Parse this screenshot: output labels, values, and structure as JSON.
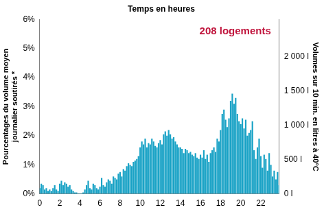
{
  "chart_data": {
    "type": "bar",
    "title": "Temps en heures",
    "annotation": "208 logements",
    "annotation_color": "#c0143c",
    "y_label": [
      "Pourcentages du volume moyen",
      "journalier soutirés *"
    ],
    "y2_label": "Volumes sur 10 min. en litres à 40°C",
    "color": "#1ba3c6",
    "grid": false,
    "legend": false,
    "categories": [
      "0",
      null,
      null,
      null,
      null,
      null,
      null,
      null,
      null,
      null,
      null,
      null,
      "2",
      null,
      null,
      null,
      null,
      null,
      null,
      null,
      null,
      null,
      null,
      null,
      "4",
      null,
      null,
      null,
      null,
      null,
      null,
      null,
      null,
      null,
      null,
      null,
      "6",
      null,
      null,
      null,
      null,
      null,
      null,
      null,
      null,
      null,
      null,
      null,
      "8",
      null,
      null,
      null,
      null,
      null,
      null,
      null,
      null,
      null,
      null,
      null,
      "10",
      null,
      null,
      null,
      null,
      null,
      null,
      null,
      null,
      null,
      null,
      null,
      "12",
      null,
      null,
      null,
      null,
      null,
      null,
      null,
      null,
      null,
      null,
      null,
      "14",
      null,
      null,
      null,
      null,
      null,
      null,
      null,
      null,
      null,
      null,
      null,
      "16",
      null,
      null,
      null,
      null,
      null,
      null,
      null,
      null,
      null,
      null,
      null,
      "18",
      null,
      null,
      null,
      null,
      null,
      null,
      null,
      null,
      null,
      null,
      null,
      "20",
      null,
      null,
      null,
      null,
      null,
      null,
      null,
      null,
      null,
      null,
      null,
      "22",
      null,
      null,
      null,
      null,
      null,
      null,
      null,
      null,
      null,
      null,
      null
    ],
    "values": [
      0.2,
      0.35,
      0.3,
      0.15,
      0.2,
      0.1,
      0.15,
      0.1,
      0.2,
      0.3,
      0.15,
      0.1,
      0.35,
      0.45,
      0.3,
      0.4,
      0.35,
      0.25,
      0.3,
      0.15,
      0.1,
      0.05,
      0.05,
      0.02,
      0.02,
      0.02,
      0.05,
      0.15,
      0.3,
      0.45,
      0.2,
      0.15,
      0.35,
      0.3,
      0.2,
      0.15,
      0.25,
      0.55,
      0.3,
      0.25,
      0.4,
      0.5,
      0.45,
      0.35,
      0.6,
      0.55,
      0.5,
      0.7,
      0.75,
      0.6,
      0.85,
      0.8,
      0.95,
      1.05,
      1.0,
      0.95,
      1.1,
      1.15,
      1.2,
      1.3,
      1.6,
      1.8,
      1.7,
      1.9,
      1.6,
      1.75,
      1.7,
      1.9,
      1.8,
      1.65,
      1.6,
      1.75,
      1.85,
      1.7,
      2.05,
      2.15,
      2.0,
      2.2,
      2.05,
      1.9,
      1.95,
      1.8,
      1.7,
      1.6,
      1.6,
      1.55,
      1.4,
      1.55,
      1.5,
      1.4,
      1.45,
      1.35,
      1.3,
      1.4,
      1.25,
      1.2,
      1.35,
      1.25,
      1.5,
      1.2,
      1.35,
      1.1,
      1.4,
      1.5,
      1.6,
      1.45,
      1.9,
      1.8,
      2.2,
      2.75,
      2.9,
      2.55,
      2.3,
      2.6,
      3.2,
      3.45,
      3.1,
      3.3,
      2.75,
      2.5,
      2.4,
      2.6,
      2.25,
      2.55,
      2.0,
      2.1,
      2.2,
      2.5,
      1.5,
      1.2,
      1.6,
      1.9,
      1.3,
      0.9,
      1.35,
      1.2,
      0.8,
      1.4,
      1.0,
      0.6,
      0.8,
      0.5,
      0.75,
      0.3
    ],
    "ylim": [
      0,
      6
    ],
    "yticks": [
      {
        "value": 0,
        "label": "0%"
      },
      {
        "value": 1,
        "label": "1%"
      },
      {
        "value": 2,
        "label": "2%"
      },
      {
        "value": 3,
        "label": "3%"
      },
      {
        "value": 4,
        "label": "4%"
      },
      {
        "value": 5,
        "label": "5%"
      },
      {
        "value": 6,
        "label": "6%"
      }
    ],
    "y2lim": [
      0,
      2540
    ],
    "y2ticks": [
      {
        "value": 0,
        "label": "0 l"
      },
      {
        "value": 500,
        "label": "500 l"
      },
      {
        "value": 1000,
        "label": "1 000 l"
      },
      {
        "value": 1500,
        "label": "1 500 l"
      },
      {
        "value": 2000,
        "label": "2 000 l"
      }
    ]
  }
}
